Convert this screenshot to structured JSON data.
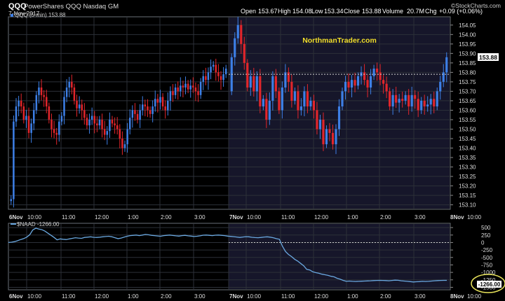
{
  "header": {
    "symbol": "QQQ",
    "name": "PowerShares QQQ Nasdaq GM",
    "date": "7-Nov-2017",
    "open_label": "Open",
    "open": "153.67",
    "high_label": "High",
    "high": "154.08",
    "low_label": "Low",
    "low": "153.34",
    "close_label": "Close",
    "close": "153.88",
    "volume_label": "Volume",
    "volume": "20.7M",
    "chg_label": "Chg",
    "chg": "+0.09 (+0.06%)",
    "brand": "©StockCharts.com"
  },
  "main_panel": {
    "legend": "QQQ (5 min) 153.88",
    "watermark": "NorthmanTrader.com",
    "last_price_tag": "153.88"
  },
  "lower_panel": {
    "legend": "$NAAD -1266.00",
    "last_value_tag": "-1266.00"
  },
  "colors": {
    "up": "#3d7fe6",
    "down": "#e2252b",
    "naad_line": "#6aa8e0",
    "grid": "#2c3038",
    "shade": "#16162a",
    "watermark": "#f2df2a",
    "circle": "#e8e35a"
  },
  "chart_data": [
    {
      "type": "candlestick",
      "interval": "5 min",
      "y_ticks": [
        153.1,
        153.15,
        153.2,
        153.25,
        153.3,
        153.35,
        153.4,
        153.45,
        153.5,
        153.55,
        153.6,
        153.65,
        153.7,
        153.75,
        153.8,
        153.85,
        153.9,
        153.95,
        154.0,
        154.05
      ],
      "y_tick_labels": [
        "153.10",
        "153.15",
        "153.20",
        "153.25",
        "153.30",
        "153.35",
        "153.40",
        "153.45",
        "153.50",
        "153.55",
        "153.60",
        "153.65",
        "153.70",
        "153.75",
        "153.80",
        "153.85",
        "153.90",
        "153.95",
        "154.00",
        "154.05"
      ],
      "ylim": [
        153.08,
        154.09
      ],
      "x_tick_labels": [
        "6Nov",
        "10:00",
        "11:00",
        "12:00",
        "1:00",
        "2:00",
        "3:00",
        "7Nov",
        "10:00",
        "11:00",
        "12:00",
        "1:00",
        "2:00",
        "3:00",
        "8Nov",
        "10:00"
      ],
      "reference_line": 153.79,
      "sessions": [
        {
          "label": "6Nov",
          "closes": [
            153.13,
            153.54,
            153.62,
            153.65,
            153.62,
            153.55,
            153.57,
            153.48,
            153.53,
            153.6,
            153.68,
            153.72,
            153.68,
            153.67,
            153.62,
            153.55,
            153.5,
            153.48,
            153.47,
            153.54,
            153.57,
            153.67,
            153.72,
            153.75,
            153.72,
            153.65,
            153.61,
            153.63,
            153.6,
            153.56,
            153.52,
            153.55,
            153.57,
            153.53,
            153.52,
            153.55,
            153.5,
            153.47,
            153.49,
            153.55,
            153.53,
            153.52,
            153.5,
            153.45,
            153.4,
            153.42,
            153.5,
            153.56,
            153.6,
            153.58,
            153.55,
            153.6,
            153.63,
            153.62,
            153.6,
            153.58,
            153.62,
            153.66,
            153.64,
            153.67,
            153.62,
            153.6,
            153.65,
            153.7,
            153.68,
            153.72,
            153.7,
            153.73,
            153.72,
            153.74,
            153.71,
            153.73,
            153.72,
            153.7,
            153.68,
            153.75,
            153.78,
            153.76,
            153.8,
            153.83,
            153.84,
            153.8,
            153.78,
            153.76,
            153.79,
            153.82
          ]
        },
        {
          "label": "7Nov",
          "closes": [
            153.88,
            153.98,
            154.05,
            153.95,
            153.85,
            153.72,
            153.78,
            153.7,
            153.78,
            153.62,
            153.66,
            153.55,
            153.65,
            153.78,
            153.7,
            153.6,
            153.72,
            153.8,
            153.75,
            153.65,
            153.7,
            153.6,
            153.62,
            153.7,
            153.62,
            153.65,
            153.6,
            153.5,
            153.55,
            153.42,
            153.5,
            153.48,
            153.42,
            153.5,
            153.62,
            153.7,
            153.75,
            153.72,
            153.76,
            153.73,
            153.78,
            153.8,
            153.76,
            153.72,
            153.78,
            153.82,
            153.8,
            153.76,
            153.74,
            153.7,
            153.62,
            153.68,
            153.64,
            153.66,
            153.65,
            153.68,
            153.62,
            153.68,
            153.66,
            153.6,
            153.65,
            153.62,
            153.63,
            153.66,
            153.62,
            153.7,
            153.75,
            153.8,
            153.88
          ]
        }
      ]
    },
    {
      "type": "line",
      "series_name": "$NAAD",
      "y_ticks": [
        500,
        250,
        0,
        -250,
        -500,
        -750,
        -1000,
        -1250,
        -1500
      ],
      "y_tick_labels": [
        "500",
        "250",
        "0",
        "-250",
        "-500",
        "-750",
        "-1000",
        "-1250",
        "-1500"
      ],
      "ylim": [
        -1560,
        620
      ],
      "reference_line": 0,
      "values": [
        0,
        10,
        30,
        60,
        100,
        130,
        180,
        260,
        420,
        480,
        450,
        430,
        380,
        310,
        240,
        170,
        90,
        120,
        110,
        100,
        120,
        140,
        160,
        150,
        140,
        170,
        180,
        190,
        175,
        170,
        180,
        190,
        200,
        210,
        190,
        160,
        130,
        150,
        180,
        210,
        230,
        240,
        250,
        230,
        250,
        270,
        260,
        240,
        230,
        220,
        210,
        230,
        240,
        250,
        235,
        225,
        215,
        230,
        240,
        225,
        215,
        200,
        210,
        225,
        245,
        250,
        240,
        230,
        245,
        250,
        240,
        230,
        215,
        205,
        195,
        185,
        170,
        185,
        195,
        190,
        175,
        165,
        160,
        170,
        185,
        190,
        180,
        160,
        130,
        110,
        -120,
        -300,
        -400,
        -470,
        -560,
        -620,
        -700,
        -780,
        -900,
        -920,
        -980,
        -1010,
        -1030,
        -1060,
        -1080,
        -1100,
        -1130,
        -1150,
        -1200,
        -1230,
        -1270,
        -1300,
        -1290,
        -1300,
        -1305,
        -1300,
        -1295,
        -1290,
        -1285,
        -1280,
        -1275,
        -1270,
        -1266,
        -1270,
        -1275,
        -1280,
        -1270,
        -1260,
        -1265,
        -1280,
        -1290,
        -1300,
        -1310,
        -1320,
        -1315,
        -1310,
        -1300,
        -1305,
        -1300,
        -1290,
        -1280,
        -1275,
        -1270,
        -1266,
        -1266
      ]
    }
  ]
}
